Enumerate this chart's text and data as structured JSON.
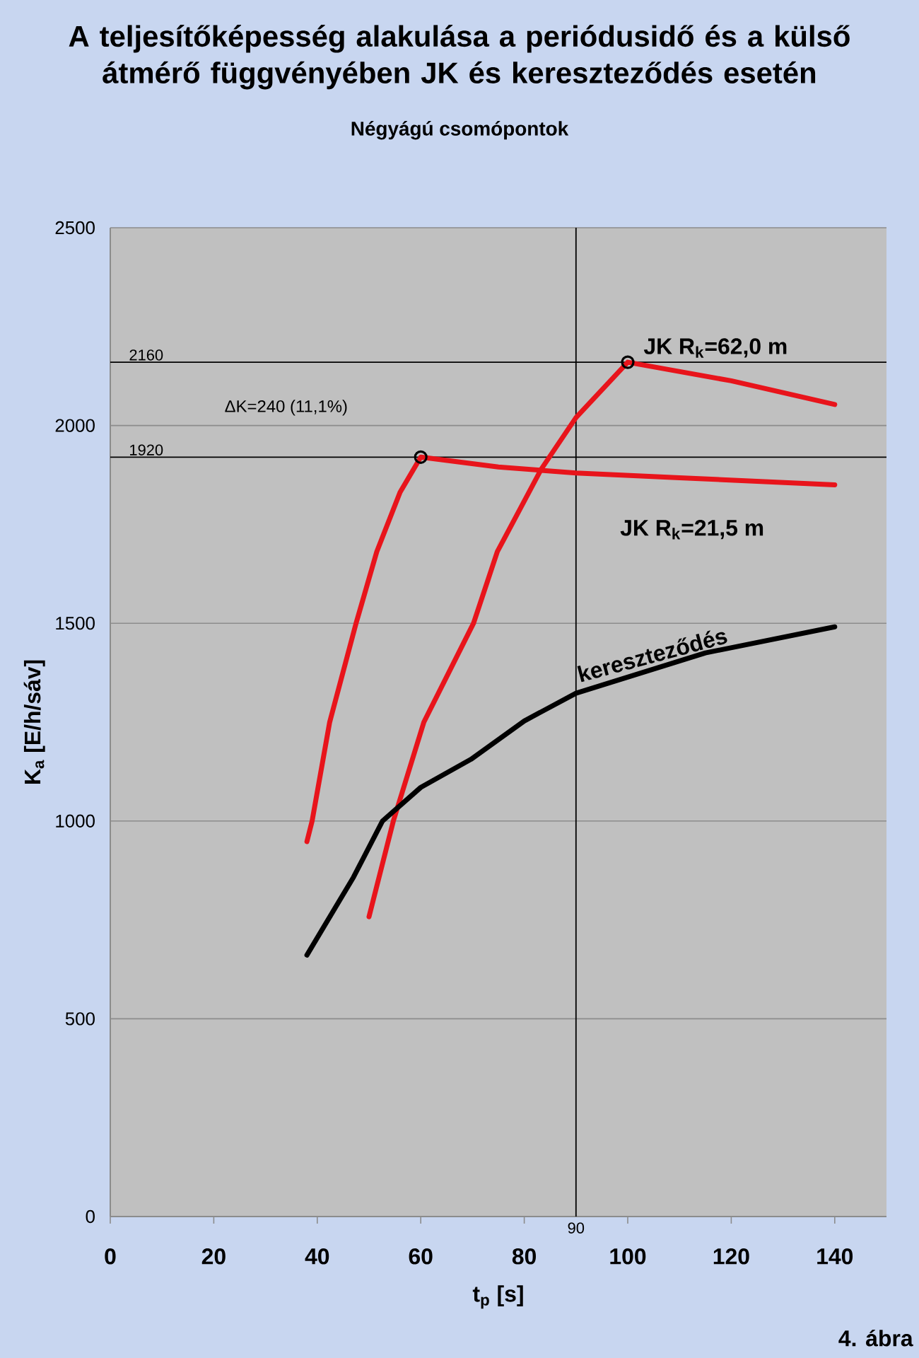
{
  "chart_data": {
    "type": "line",
    "title": "A teljesítőképesség alakulása a periódusidő és a külső átmérő függvényében JK és kereszteződés esetén",
    "subtitle": "Négyágú csomópontok",
    "xlabel": "t$_{p}$  [s]",
    "ylabel": "K$_{a}$  [E/h/sáv]",
    "xlim": [
      0,
      150
    ],
    "ylim": [
      0,
      2500
    ],
    "xticks": [
      0,
      20,
      40,
      60,
      80,
      100,
      120,
      140
    ],
    "yticks": [
      0,
      500,
      1000,
      1500,
      2000,
      2500
    ],
    "grid": "y",
    "legend": false,
    "line_style": "solid",
    "series": [
      {
        "name": "JK   R$_{k}$=62,0 m",
        "color": "#e8141b",
        "x": [
          50,
          54.7,
          60.6,
          70.2,
          74.8,
          83.3,
          90,
          100,
          120,
          140
        ],
        "values": [
          758,
          1000,
          1250,
          1500,
          1681,
          1890,
          2020,
          2160,
          2113,
          2053
        ]
      },
      {
        "name": "JK   R$_{k}$=21,5 m",
        "color": "#e8141b",
        "x": [
          38,
          39,
          42.4,
          47.5,
          51.5,
          56,
          60,
          75,
          90,
          110,
          140
        ],
        "values": [
          948,
          1000,
          1250,
          1500,
          1681,
          1831,
          1920,
          1895,
          1880,
          1868,
          1850
        ]
      },
      {
        "name": "kereszteződés",
        "color": "#000000",
        "x": [
          38,
          47,
          52.6,
          60,
          69.7,
          80,
          90,
          115,
          140
        ],
        "values": [
          661,
          858,
          1000,
          1085,
          1156,
          1253,
          1323,
          1425,
          1491
        ]
      },
      {
        "type": "scatter",
        "marker": "circle",
        "color": "#000000",
        "x": [
          60,
          100
        ],
        "values": [
          1920,
          2160
        ]
      }
    ],
    "ref_lines": [
      {
        "axis": "y",
        "value": 2160,
        "label": "2160",
        "color": "#000000"
      },
      {
        "axis": "y",
        "value": 1920,
        "label": "1920",
        "color": "#000000"
      },
      {
        "axis": "x",
        "value": 90,
        "label": "90",
        "color": "#000000"
      }
    ],
    "annotations": [
      "ΔK=240 (11,1%)",
      "4. ábra"
    ]
  }
}
